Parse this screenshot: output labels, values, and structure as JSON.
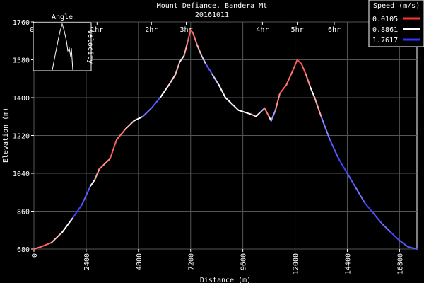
{
  "chart_data": {
    "type": "line",
    "title": "Mount Defiance, Bandera Mt",
    "subtitle": "20161011",
    "xlabel": "Distance (m)",
    "ylabel": "Elevation (m)",
    "xlim": [
      0,
      17600
    ],
    "ylim": [
      680,
      1760
    ],
    "x_ticks": [
      "0",
      "2400",
      "4800",
      "7200",
      "9600",
      "12000",
      "14400",
      "16800"
    ],
    "y_ticks": [
      "680",
      "860",
      "1040",
      "1220",
      "1400",
      "1580",
      "1760"
    ],
    "time_axis": {
      "ticks": [
        {
          "label": "0h",
          "x": 0
        },
        {
          "label": "1hr",
          "x": 2900
        },
        {
          "label": "2hr",
          "x": 5400
        },
        {
          "label": "3hr",
          "x": 7000
        },
        {
          "label": "4hr",
          "x": 10500
        },
        {
          "label": "5hr",
          "x": 12100
        },
        {
          "label": "6hr",
          "x": 13800
        }
      ]
    },
    "grid": true,
    "legend": {
      "title": "Speed (m/s)",
      "placement": "top-right",
      "entries": [
        {
          "label": "0.0105",
          "color": "#ff3333"
        },
        {
          "label": "0.8861",
          "color": "#ffffff"
        },
        {
          "label": "1.7617",
          "color": "#3333ff"
        }
      ]
    },
    "series": [
      {
        "x": [
          0,
          300,
          800,
          1300,
          1800,
          2200,
          2600,
          2800,
          3000,
          3200,
          3500,
          3800,
          4200,
          4600,
          5000,
          5400,
          5800,
          6200,
          6500,
          6700,
          6900,
          7050,
          7200,
          7300,
          7500,
          7700,
          7900,
          8200,
          8500,
          8800,
          9100,
          9400,
          9700,
          10000,
          10200,
          10400,
          10600,
          10800,
          10900,
          11100,
          11300,
          11600,
          11900,
          12100,
          12300,
          12500,
          12700,
          12900,
          13200,
          13600,
          14000,
          14400,
          14800,
          15200,
          15600,
          16000,
          16400,
          16800,
          17200,
          17600
        ],
        "y": [
          680,
          690,
          710,
          760,
          830,
          890,
          980,
          1010,
          1060,
          1080,
          1110,
          1200,
          1250,
          1290,
          1310,
          1350,
          1400,
          1460,
          1510,
          1570,
          1600,
          1660,
          1720,
          1710,
          1650,
          1600,
          1560,
          1510,
          1460,
          1400,
          1370,
          1340,
          1330,
          1320,
          1310,
          1330,
          1350,
          1310,
          1290,
          1340,
          1420,
          1460,
          1530,
          1580,
          1560,
          1510,
          1450,
          1400,
          1310,
          1200,
          1110,
          1040,
          970,
          900,
          850,
          800,
          760,
          720,
          690,
          680
        ],
        "speed": [
          0.3,
          0.2,
          0.6,
          0.9,
          1.7,
          1.6,
          0.9,
          0.5,
          0.3,
          0.4,
          0.2,
          0.3,
          0.6,
          0.9,
          1.5,
          1.6,
          0.9,
          0.7,
          0.6,
          0.8,
          0.5,
          0.2,
          0.1,
          0.3,
          0.6,
          1.1,
          1.6,
          1.1,
          0.9,
          0.9,
          1.0,
          0.9,
          0.9,
          0.6,
          0.9,
          1.2,
          0.3,
          0.8,
          1.3,
          0.4,
          0.2,
          0.3,
          0.2,
          0.1,
          0.2,
          0.4,
          0.9,
          0.5,
          1.4,
          1.6,
          1.7,
          1.6,
          1.5,
          1.7,
          1.6,
          1.5,
          1.7,
          1.6,
          1.6,
          1.7
        ]
      }
    ],
    "inset": {
      "title": "Angle",
      "side_label": "Velocity"
    }
  }
}
